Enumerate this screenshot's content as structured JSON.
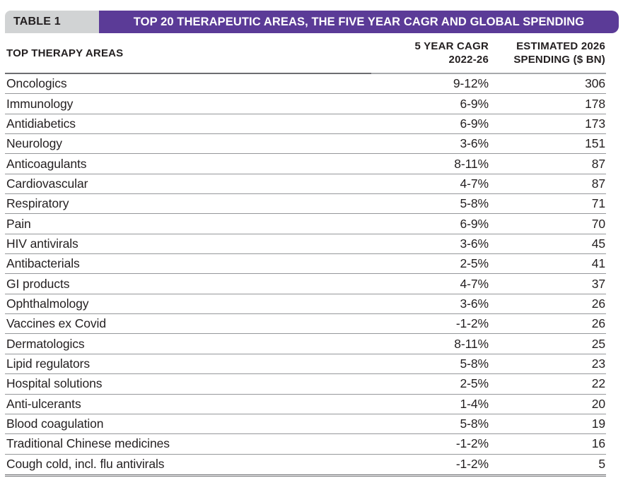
{
  "header": {
    "label": "TABLE 1",
    "title": "TOP 20 THERAPEUTIC AREAS, THE FIVE YEAR CAGR AND GLOBAL SPENDING"
  },
  "columns": {
    "therapy": "TOP THERAPY AREAS",
    "cagr_line1": "5 YEAR CAGR",
    "cagr_line2": "2022-26",
    "spend_line1": "ESTIMATED 2026",
    "spend_line2": "SPENDING ($ BN)"
  },
  "rows": [
    {
      "area": "Oncologics",
      "cagr": "9-12%",
      "spending": "306"
    },
    {
      "area": "Immunology",
      "cagr": "6-9%",
      "spending": "178"
    },
    {
      "area": "Antidiabetics",
      "cagr": "6-9%",
      "spending": "173"
    },
    {
      "area": "Neurology",
      "cagr": "3-6%",
      "spending": "151"
    },
    {
      "area": "Anticoagulants",
      "cagr": "8-11%",
      "spending": "87"
    },
    {
      "area": "Cardiovascular",
      "cagr": "4-7%",
      "spending": "87"
    },
    {
      "area": "Respiratory",
      "cagr": "5-8%",
      "spending": "71"
    },
    {
      "area": "Pain",
      "cagr": "6-9%",
      "spending": "70"
    },
    {
      "area": "HIV antivirals",
      "cagr": "3-6%",
      "spending": "45"
    },
    {
      "area": "Antibacterials",
      "cagr": "2-5%",
      "spending": "41"
    },
    {
      "area": "GI products",
      "cagr": "4-7%",
      "spending": "37"
    },
    {
      "area": "Ophthalmology",
      "cagr": "3-6%",
      "spending": "26"
    },
    {
      "area": "Vaccines ex Covid",
      "cagr": "-1-2%",
      "spending": "26"
    },
    {
      "area": "Dermatologics",
      "cagr": "8-11%",
      "spending": "25"
    },
    {
      "area": "Lipid regulators",
      "cagr": "5-8%",
      "spending": "23"
    },
    {
      "area": "Hospital solutions",
      "cagr": "2-5%",
      "spending": "22"
    },
    {
      "area": "Anti-ulcerants",
      "cagr": "1-4%",
      "spending": "20"
    },
    {
      "area": "Blood coagulation",
      "cagr": "5-8%",
      "spending": "19"
    },
    {
      "area": "Traditional Chinese medicines",
      "cagr": "-1-2%",
      "spending": "16"
    },
    {
      "area": "Cough cold, incl. flu antivirals",
      "cagr": "-1-2%",
      "spending": "5"
    }
  ],
  "colors": {
    "accent_purple": "#5B3B97",
    "label_gray": "#D1D3D4",
    "text_dark": "#231F20",
    "rule_dark": "#6D6E71",
    "rule_light": "#A7A9AC",
    "row_rule": "#95979A"
  },
  "chart_data": {
    "type": "table",
    "title": "TOP 20 THERAPEUTIC AREAS, THE FIVE YEAR CAGR AND GLOBAL SPENDING",
    "columns": [
      "TOP THERAPY AREAS",
      "5 YEAR CAGR 2022-26",
      "ESTIMATED 2026 SPENDING ($ BN)"
    ],
    "rows": [
      [
        "Oncologics",
        "9-12%",
        306
      ],
      [
        "Immunology",
        "6-9%",
        178
      ],
      [
        "Antidiabetics",
        "6-9%",
        173
      ],
      [
        "Neurology",
        "3-6%",
        151
      ],
      [
        "Anticoagulants",
        "8-11%",
        87
      ],
      [
        "Cardiovascular",
        "4-7%",
        87
      ],
      [
        "Respiratory",
        "5-8%",
        71
      ],
      [
        "Pain",
        "6-9%",
        70
      ],
      [
        "HIV antivirals",
        "3-6%",
        45
      ],
      [
        "Antibacterials",
        "2-5%",
        41
      ],
      [
        "GI products",
        "4-7%",
        37
      ],
      [
        "Ophthalmology",
        "3-6%",
        26
      ],
      [
        "Vaccines ex Covid",
        "-1-2%",
        26
      ],
      [
        "Dermatologics",
        "8-11%",
        25
      ],
      [
        "Lipid regulators",
        "5-8%",
        23
      ],
      [
        "Hospital solutions",
        "2-5%",
        22
      ],
      [
        "Anti-ulcerants",
        "1-4%",
        20
      ],
      [
        "Blood coagulation",
        "5-8%",
        19
      ],
      [
        "Traditional Chinese medicines",
        "-1-2%",
        16
      ],
      [
        "Cough cold, incl. flu antivirals",
        "-1-2%",
        5
      ]
    ]
  }
}
